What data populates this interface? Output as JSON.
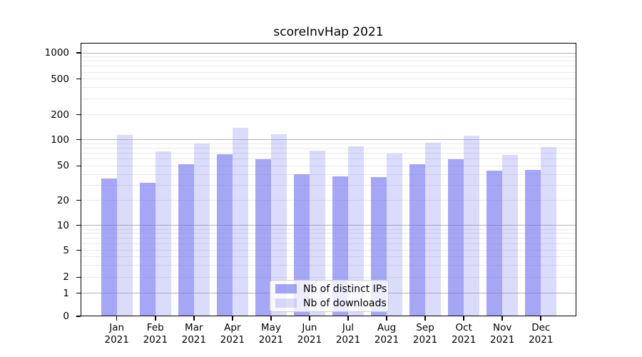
{
  "figure": {
    "title": "scoreInvHap 2021"
  },
  "chart_data": {
    "type": "bar",
    "title": "scoreInvHap 2021",
    "categories": [
      "Jan",
      "Feb",
      "Mar",
      "Apr",
      "May",
      "Jun",
      "Jul",
      "Aug",
      "Sep",
      "Oct",
      "Nov",
      "Dec"
    ],
    "x_tick_year": "2021",
    "series": [
      {
        "name": "Nb of distinct IPs",
        "color": "rgba(112,112,240,0.62)",
        "values": [
          36,
          32,
          52,
          68,
          60,
          40,
          38,
          37,
          52,
          60,
          44,
          45
        ]
      },
      {
        "name": "Nb of downloads",
        "color": "rgba(130,130,240,0.29)",
        "values": [
          114,
          74,
          91,
          140,
          117,
          75,
          84,
          70,
          92,
          112,
          67,
          82
        ]
      }
    ],
    "y_ticks": [
      0,
      1,
      2,
      5,
      10,
      20,
      50,
      100,
      200,
      500,
      1000
    ],
    "y_scale": "log-like (symlog, linear below 1)",
    "ylim": [
      0,
      1000
    ],
    "grid": true,
    "legend_position": "inside lower center"
  },
  "colors": {
    "background": "#ffffff",
    "text": "#000000",
    "axis": "#000000",
    "grid_major": "#b4b4b4",
    "grid_minor": "#e9e9e9",
    "legend_border": "#cccccc",
    "legend_background": "rgba(255,255,255,0.8)"
  }
}
